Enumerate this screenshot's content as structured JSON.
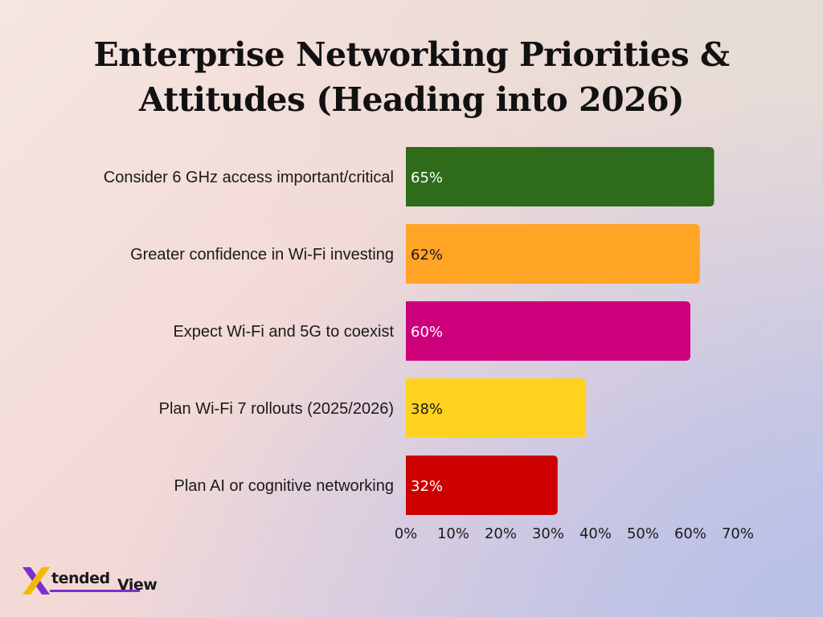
{
  "chart_data": {
    "type": "bar",
    "orientation": "horizontal",
    "title": "Enterprise Networking Priorities & Attitudes (Heading into 2026)",
    "title_lines": [
      "Enterprise Networking Priorities &",
      "Attitudes (Heading into 2026)"
    ],
    "categories": [
      "Consider 6 GHz access important/critical",
      "Greater confidence in Wi-Fi investing",
      "Expect Wi-Fi and 5G to coexist",
      "Plan Wi-Fi 7 rollouts (2025/2026)",
      "Plan AI or cognitive networking"
    ],
    "values": [
      65,
      62,
      60,
      38,
      32
    ],
    "value_labels": [
      "65%",
      "62%",
      "60%",
      "38%",
      "32%"
    ],
    "bar_colors": [
      "#2e6b1a",
      "#ffa424",
      "#cc007a",
      "#ffd21f",
      "#cc0000"
    ],
    "value_label_colors": [
      "#ffffff",
      "#1a1a1a",
      "#ffffff",
      "#1a1a1a",
      "#ffffff"
    ],
    "x_ticks": [
      0,
      10,
      20,
      30,
      40,
      50,
      60,
      70
    ],
    "x_tick_labels": [
      "0%",
      "10%",
      "20%",
      "30%",
      "40%",
      "50%",
      "60%",
      "70%"
    ],
    "xlim": [
      0,
      70
    ],
    "xlabel": "",
    "ylabel": "",
    "grid": false,
    "legend": "none"
  },
  "logo": {
    "text_primary": "tended",
    "text_secondary": "View",
    "mark_color_a": "#f5b800",
    "mark_color_b": "#7b2fd0"
  }
}
